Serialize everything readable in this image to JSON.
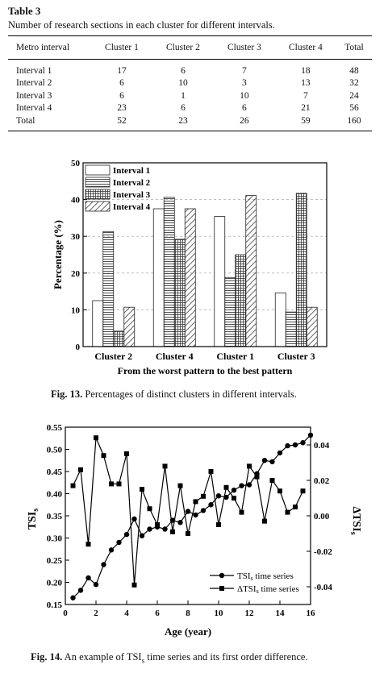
{
  "table": {
    "label": "Table 3",
    "caption": "Number of research sections in each cluster for different intervals.",
    "headers": [
      "Metro interval",
      "Cluster 1",
      "Cluster 2",
      "Cluster 3",
      "Cluster 4",
      "Total"
    ],
    "rows": [
      [
        "Interval 1",
        "17",
        "6",
        "7",
        "18",
        "48"
      ],
      [
        "Interval 2",
        "6",
        "10",
        "3",
        "13",
        "32"
      ],
      [
        "Interval 3",
        "6",
        "1",
        "10",
        "7",
        "24"
      ],
      [
        "Interval 4",
        "23",
        "6",
        "6",
        "21",
        "56"
      ],
      [
        "Total",
        "52",
        "23",
        "26",
        "59",
        "160"
      ]
    ]
  },
  "fig13": {
    "caption_label": "Fig. 13.",
    "caption_text": " Percentages of distinct clusters in different intervals."
  },
  "fig14": {
    "caption_label": "Fig. 14.",
    "caption_text_a": " An example of TSI",
    "caption_sub": "s",
    "caption_text_b": " time series and its first order difference."
  },
  "chart_data": [
    {
      "type": "bar",
      "categories": [
        "Cluster 2",
        "Cluster 4",
        "Cluster 1",
        "Cluster 3"
      ],
      "series": [
        {
          "name": "Interval 1",
          "pattern": "empty",
          "values": [
            12.5,
            37.5,
            35.4,
            14.6
          ]
        },
        {
          "name": "Interval 2",
          "pattern": "horizontal-lines",
          "values": [
            31.3,
            40.6,
            18.8,
            9.4
          ]
        },
        {
          "name": "Interval 3",
          "pattern": "grid",
          "values": [
            4.2,
            29.2,
            25.0,
            41.7
          ]
        },
        {
          "name": "Interval 4",
          "pattern": "diagonal",
          "values": [
            10.7,
            37.5,
            41.1,
            10.7
          ]
        }
      ],
      "xlabel": "From the worst pattern to the best pattern",
      "ylabel": "Percentage (%)",
      "ylim": [
        0,
        50
      ],
      "yticks": [
        0,
        10,
        20,
        30,
        40,
        50
      ],
      "grid": "dashed-horizontal",
      "legend": "top-left"
    },
    {
      "type": "line",
      "xlabel": "Age (year)",
      "xlim": [
        0,
        16
      ],
      "xticks": [
        0,
        2,
        4,
        6,
        8,
        10,
        12,
        14,
        16
      ],
      "y_left": {
        "label_main": "TSI",
        "label_sub": "s",
        "lim": [
          0.15,
          0.55
        ],
        "ticks": [
          "0.15",
          "0.20",
          "0.25",
          "0.30",
          "0.35",
          "0.40",
          "0.45",
          "0.50",
          "0.55"
        ]
      },
      "y_right": {
        "label_prefix": "Δ",
        "label_main": "TSI",
        "label_sub": "s",
        "lim": [
          -0.05,
          0.05
        ],
        "ticks": [
          "-0.04",
          "-0.02",
          "0.00",
          "0.02",
          "0.04"
        ]
      },
      "legend": "bottom-right",
      "series": [
        {
          "name_main": "TSI",
          "name_sub": "s",
          "name_rest": " time series",
          "axis": "left",
          "marker": "circle",
          "x": [
            0.5,
            1.0,
            1.5,
            2.0,
            2.5,
            3.0,
            3.5,
            4.0,
            4.5,
            5.0,
            5.5,
            6.0,
            6.5,
            7.0,
            7.5,
            8.0,
            8.5,
            9.0,
            9.5,
            10.0,
            10.5,
            11.0,
            11.5,
            12.0,
            12.5,
            13.0,
            13.5,
            14.0,
            14.5,
            15.0,
            15.5,
            16.0
          ],
          "y": [
            0.165,
            0.182,
            0.21,
            0.195,
            0.24,
            0.273,
            0.29,
            0.308,
            0.343,
            0.305,
            0.32,
            0.325,
            0.32,
            0.34,
            0.335,
            0.36,
            0.352,
            0.362,
            0.375,
            0.395,
            0.392,
            0.408,
            0.418,
            0.42,
            0.445,
            0.475,
            0.472,
            0.492,
            0.508,
            0.51,
            0.515,
            0.532
          ]
        },
        {
          "name_prefix": "Δ",
          "name_main": "TSI",
          "name_sub": "s",
          "name_rest": " time series",
          "axis": "right",
          "marker": "square",
          "x": [
            0.5,
            1.0,
            1.5,
            2.0,
            2.5,
            3.0,
            3.5,
            4.0,
            4.5,
            5.0,
            5.5,
            6.0,
            6.5,
            7.0,
            7.5,
            8.0,
            8.5,
            9.0,
            9.5,
            10.0,
            10.5,
            11.0,
            11.5,
            12.0,
            12.5,
            13.0,
            13.5,
            14.0,
            14.5,
            15.0,
            15.5
          ],
          "y": [
            0.017,
            0.026,
            -0.016,
            0.044,
            0.034,
            0.018,
            0.018,
            0.035,
            -0.039,
            0.015,
            0.004,
            -0.005,
            0.028,
            -0.009,
            0.017,
            -0.01,
            0.008,
            0.011,
            0.025,
            -0.005,
            0.016,
            0.01,
            0.002,
            0.028,
            0.022,
            -0.003,
            0.02,
            0.014,
            0.002,
            0.005,
            0.014
          ]
        }
      ]
    }
  ]
}
